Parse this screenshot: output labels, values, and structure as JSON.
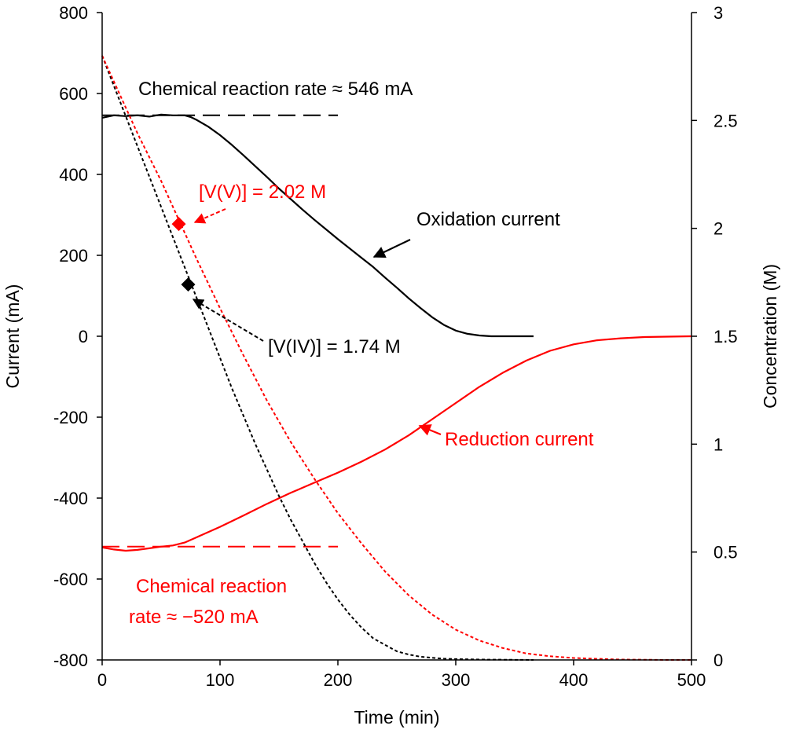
{
  "chart_data": {
    "type": "line",
    "xlabel": "Time (min)",
    "ylabel": "Current (mA)",
    "y2label": "Concentration (M)",
    "xlim": [
      0,
      500
    ],
    "ylim": [
      -800,
      800
    ],
    "y2lim": [
      0,
      3
    ],
    "xticks": [
      "0",
      "100",
      "200",
      "300",
      "400",
      "500"
    ],
    "yticks": [
      "800",
      "600",
      "400",
      "200",
      "0",
      "-200",
      "-400",
      "-600",
      "-800"
    ],
    "y2ticks": [
      "3",
      "2.5",
      "2",
      "1.5",
      "1",
      "0.5",
      "0"
    ],
    "grid": false,
    "legend": "none",
    "colors": {
      "black": "#000000",
      "red": "#ff0000"
    },
    "series": [
      {
        "name": "Oxidation current",
        "axis": "left",
        "color": "#000000",
        "style": "solid",
        "x": [
          0,
          10,
          20,
          30,
          40,
          50,
          60,
          70,
          75,
          80,
          90,
          100,
          110,
          120,
          130,
          140,
          150,
          160,
          170,
          180,
          190,
          200,
          210,
          220,
          230,
          240,
          250,
          260,
          270,
          280,
          290,
          300,
          310,
          320,
          330,
          340,
          350,
          360,
          366
        ],
        "y": [
          540,
          546,
          544,
          546,
          543,
          548,
          546,
          546,
          542,
          535,
          518,
          497,
          473,
          447,
          420,
          393,
          365,
          339,
          313,
          288,
          264,
          240,
          217,
          194,
          171,
          145,
          120,
          94,
          70,
          47,
          28,
          14,
          6,
          2,
          0,
          0,
          0,
          0,
          0
        ]
      },
      {
        "name": "Reduction current",
        "axis": "left",
        "color": "#ff0000",
        "style": "solid",
        "x": [
          0,
          10,
          20,
          30,
          40,
          50,
          60,
          70,
          80,
          100,
          120,
          140,
          160,
          180,
          200,
          220,
          240,
          260,
          280,
          300,
          320,
          340,
          360,
          380,
          400,
          420,
          440,
          460,
          480,
          500
        ],
        "y": [
          -522,
          -527,
          -530,
          -528,
          -524,
          -520,
          -517,
          -510,
          -497,
          -471,
          -443,
          -414,
          -387,
          -362,
          -337,
          -310,
          -280,
          -245,
          -205,
          -165,
          -125,
          -90,
          -60,
          -36,
          -20,
          -10,
          -5,
          -2,
          -1,
          0
        ]
      },
      {
        "name": "[V(IV)]",
        "axis": "right",
        "color": "#000000",
        "style": "dotted",
        "x": [
          0,
          10,
          20,
          30,
          40,
          50,
          60,
          70,
          80,
          90,
          100,
          110,
          120,
          130,
          140,
          150,
          160,
          170,
          180,
          190,
          200,
          210,
          220,
          230,
          240,
          250,
          260,
          270,
          280,
          290,
          300,
          320,
          340,
          366
        ],
        "y": [
          2.8,
          2.66,
          2.52,
          2.38,
          2.24,
          2.1,
          1.96,
          1.82,
          1.68,
          1.54,
          1.4,
          1.26,
          1.13,
          1.0,
          0.88,
          0.76,
          0.65,
          0.55,
          0.45,
          0.36,
          0.28,
          0.21,
          0.15,
          0.1,
          0.07,
          0.04,
          0.025,
          0.015,
          0.01,
          0.006,
          0.004,
          0.002,
          0.001,
          0
        ]
      },
      {
        "name": "[V(V)]",
        "axis": "right",
        "color": "#ff0000",
        "style": "dotted",
        "x": [
          0,
          10,
          20,
          30,
          40,
          50,
          60,
          70,
          80,
          100,
          120,
          140,
          160,
          180,
          200,
          220,
          240,
          260,
          280,
          300,
          320,
          340,
          360,
          380,
          400,
          420,
          440,
          460,
          480,
          500
        ],
        "y": [
          2.8,
          2.68,
          2.56,
          2.44,
          2.33,
          2.22,
          2.1,
          1.98,
          1.86,
          1.63,
          1.41,
          1.2,
          1.01,
          0.84,
          0.68,
          0.54,
          0.41,
          0.3,
          0.21,
          0.14,
          0.09,
          0.055,
          0.03,
          0.017,
          0.009,
          0.005,
          0.002,
          0.001,
          0.0,
          0.0
        ]
      }
    ],
    "reference_lines": [
      {
        "axis": "left",
        "y": 546,
        "x": [
          0,
          200
        ],
        "color": "#000000",
        "style": "dashed"
      },
      {
        "axis": "left",
        "y": -520,
        "x": [
          0,
          200
        ],
        "color": "#ff0000",
        "style": "dashed"
      }
    ],
    "markers": [
      {
        "axis": "right",
        "x": 65,
        "y": 2.02,
        "color": "#ff0000",
        "shape": "diamond"
      },
      {
        "axis": "right",
        "x": 73,
        "y": 1.74,
        "color": "#000000",
        "shape": "diamond"
      }
    ],
    "annotations": {
      "chem_rate_ox": {
        "text": "Chemical reaction rate ≈ 546 mA",
        "color": "#000000"
      },
      "v5_label": {
        "text": "[V(V)] = 2.02 M",
        "color": "#ff0000"
      },
      "v4_label": {
        "text": "[V(IV)] = 1.74 M",
        "color": "#000000"
      },
      "ox_label": {
        "text": "Oxidation current",
        "color": "#000000"
      },
      "red_label": {
        "text": "Reduction current",
        "color": "#ff0000"
      },
      "chem_rate_red_line1": {
        "text": "Chemical reaction",
        "color": "#ff0000"
      },
      "chem_rate_red_line2": {
        "text": "rate ≈ −520 mA",
        "color": "#ff0000"
      }
    }
  }
}
